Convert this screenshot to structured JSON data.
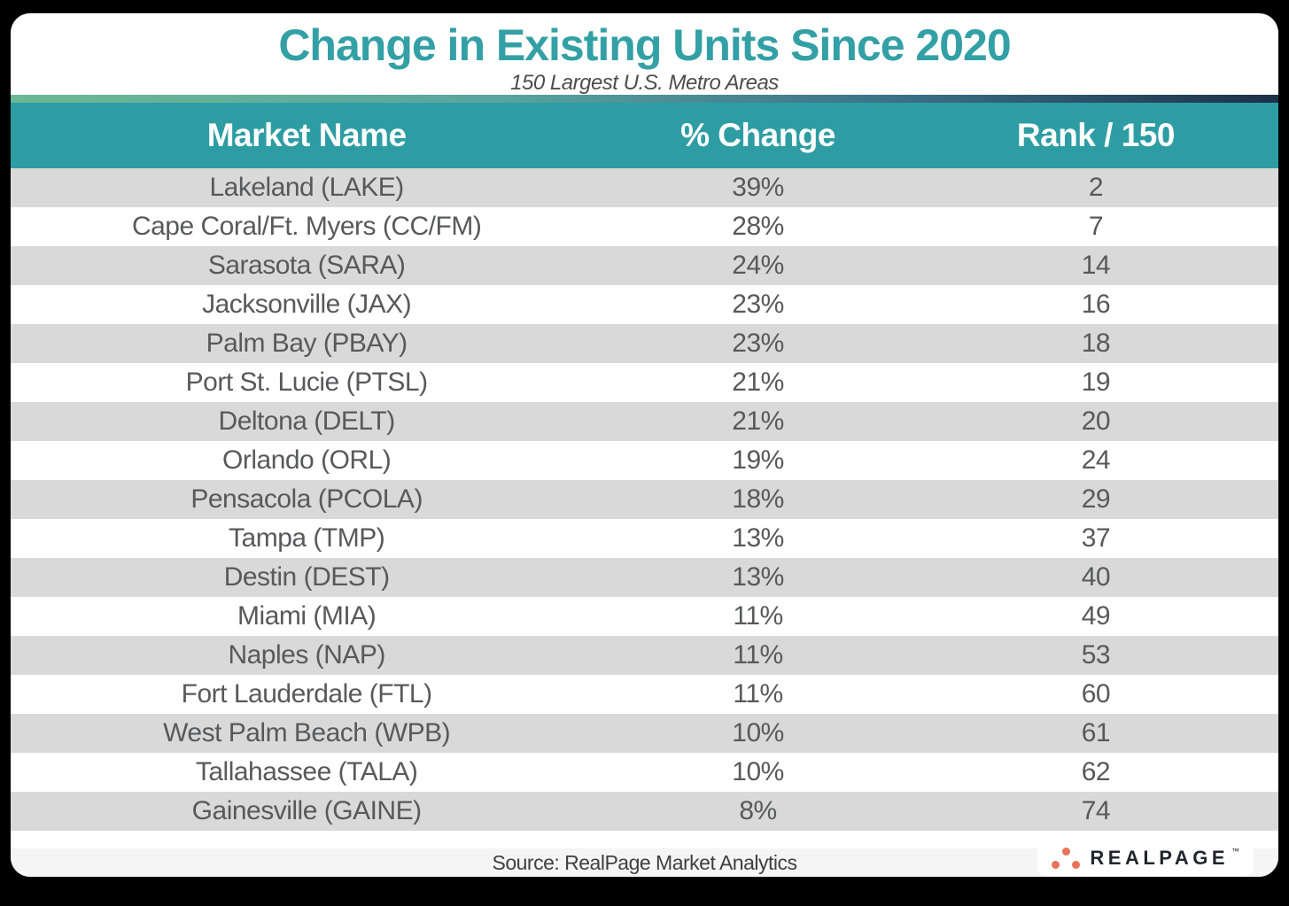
{
  "title": "Change in Existing Units Since 2020",
  "subtitle": "150 Largest U.S. Metro Areas",
  "table": {
    "columns": [
      "Market Name",
      "% Change",
      "Rank / 150"
    ],
    "rows": [
      {
        "market": "Lakeland (LAKE)",
        "change": "39%",
        "rank": "2"
      },
      {
        "market": "Cape Coral/Ft. Myers (CC/FM)",
        "change": "28%",
        "rank": "7"
      },
      {
        "market": "Sarasota (SARA)",
        "change": "24%",
        "rank": "14"
      },
      {
        "market": "Jacksonville (JAX)",
        "change": "23%",
        "rank": "16"
      },
      {
        "market": "Palm Bay (PBAY)",
        "change": "23%",
        "rank": "18"
      },
      {
        "market": "Port St. Lucie (PTSL)",
        "change": "21%",
        "rank": "19"
      },
      {
        "market": "Deltona (DELT)",
        "change": "21%",
        "rank": "20"
      },
      {
        "market": "Orlando (ORL)",
        "change": "19%",
        "rank": "24"
      },
      {
        "market": "Pensacola (PCOLA)",
        "change": "18%",
        "rank": "29"
      },
      {
        "market": "Tampa (TMP)",
        "change": "13%",
        "rank": "37"
      },
      {
        "market": "Destin (DEST)",
        "change": "13%",
        "rank": "40"
      },
      {
        "market": "Miami (MIA)",
        "change": "11%",
        "rank": "49"
      },
      {
        "market": "Naples (NAP)",
        "change": "11%",
        "rank": "53"
      },
      {
        "market": "Fort Lauderdale (FTL)",
        "change": "11%",
        "rank": "60"
      },
      {
        "market": "West Palm Beach (WPB)",
        "change": "10%",
        "rank": "61"
      },
      {
        "market": "Tallahassee (TALA)",
        "change": "10%",
        "rank": "62"
      },
      {
        "market": "Gainesville (GAINE)",
        "change": "8%",
        "rank": "74"
      }
    ]
  },
  "footer": {
    "source": "Source: RealPage Market Analytics",
    "logo_text": "REALPAGE",
    "trademark": "™"
  },
  "colors": {
    "title_teal": "#33A0A6",
    "header_teal": "#2E9DA3",
    "row_gray": "#D9D9D9",
    "row_text": "#58595B",
    "gradient_left": "#6CB894",
    "gradient_right": "#1C3048",
    "footer_bg": "#F5F5F5",
    "logo_dot_orange": "#E87358",
    "logo_text_dark": "#22262E"
  },
  "chart_data": {
    "type": "table",
    "title": "Change in Existing Units Since 2020",
    "subtitle": "150 Largest U.S. Metro Areas",
    "columns": [
      "Market Name",
      "% Change",
      "Rank / 150"
    ],
    "rows": [
      [
        "Lakeland (LAKE)",
        39,
        2
      ],
      [
        "Cape Coral/Ft. Myers (CC/FM)",
        28,
        7
      ],
      [
        "Sarasota (SARA)",
        24,
        14
      ],
      [
        "Jacksonville (JAX)",
        23,
        16
      ],
      [
        "Palm Bay (PBAY)",
        23,
        18
      ],
      [
        "Port St. Lucie (PTSL)",
        21,
        19
      ],
      [
        "Deltona (DELT)",
        21,
        20
      ],
      [
        "Orlando (ORL)",
        19,
        24
      ],
      [
        "Pensacola (PCOLA)",
        18,
        29
      ],
      [
        "Tampa (TMP)",
        13,
        37
      ],
      [
        "Destin (DEST)",
        13,
        40
      ],
      [
        "Miami (MIA)",
        11,
        49
      ],
      [
        "Naples (NAP)",
        11,
        53
      ],
      [
        "Fort Lauderdale (FTL)",
        11,
        60
      ],
      [
        "West Palm Beach (WPB)",
        10,
        61
      ],
      [
        "Tallahassee (TALA)",
        10,
        62
      ],
      [
        "Gainesville (GAINE)",
        8,
        74
      ]
    ],
    "source": "Source: RealPage Market Analytics"
  }
}
